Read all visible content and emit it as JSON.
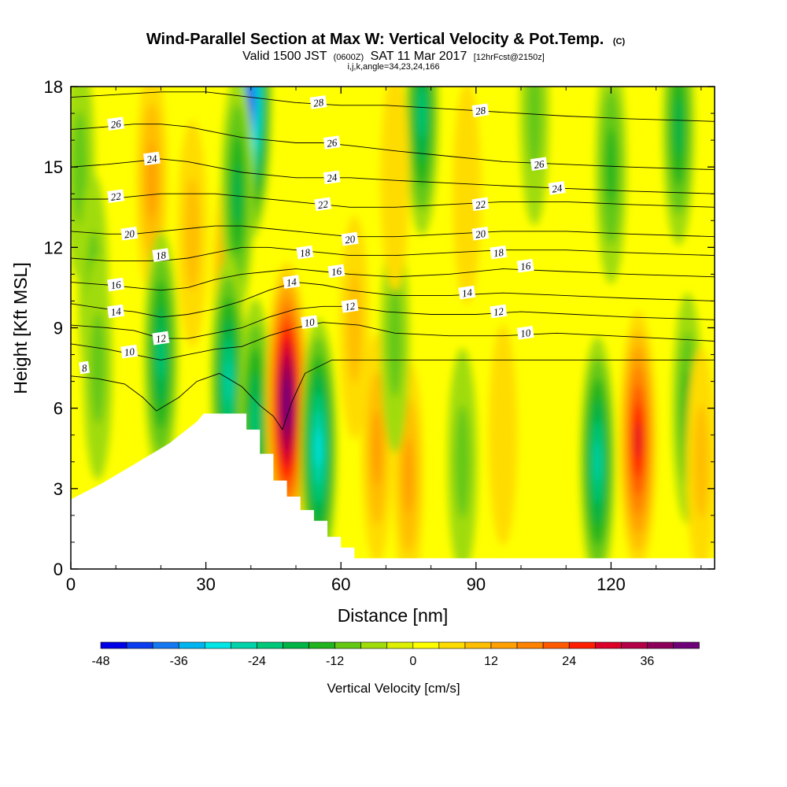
{
  "header": {
    "title_main": "Wind-Parallel Section at Max W: Vertical Velocity & Pot.Temp.",
    "title_tag": "(C)",
    "valid_a": "Valid 1500 JST",
    "valid_b": "(0600Z)",
    "valid_c": "SAT 11 Mar 2017",
    "valid_d": "[12hrFcst@2150z]",
    "info": "i,j,k,angle=34,23,24,166"
  },
  "chart_data": {
    "type": "heatmap",
    "xlabel": "Distance [nm]",
    "ylabel": "Height [Kft MSL]",
    "xlim": [
      0,
      143
    ],
    "ylim": [
      0,
      18
    ],
    "x_ticks": [
      "0",
      "30",
      "60",
      "90",
      "120"
    ],
    "x_tick_values": [
      0,
      30,
      60,
      90,
      120
    ],
    "y_ticks": [
      "0",
      "3",
      "6",
      "9",
      "12",
      "15",
      "18"
    ],
    "y_tick_values": [
      0,
      3,
      6,
      9,
      12,
      15,
      18
    ],
    "field": "Vertical Velocity",
    "colorbar": {
      "label": "Vertical Velocity [cm/s]",
      "min": -48,
      "max": 42,
      "step": 4,
      "tick_labels": [
        "-48",
        "-36",
        "-24",
        "-12",
        "0",
        "12",
        "24",
        "36"
      ],
      "tick_values": [
        -48,
        -36,
        -24,
        -12,
        0,
        12,
        24,
        36
      ],
      "colors": [
        "#0000e6",
        "#0a3cf0",
        "#1478f0",
        "#00b4f0",
        "#00e6e6",
        "#00d2aa",
        "#00c878",
        "#00b446",
        "#22b41e",
        "#64c814",
        "#a0dc0a",
        "#dcf000",
        "#ffff00",
        "#ffdc00",
        "#ffbe00",
        "#ffa000",
        "#ff8200",
        "#ff5a00",
        "#ff1e00",
        "#dc0028",
        "#b40046",
        "#8c005a",
        "#6e0078"
      ]
    },
    "velocity_features": [
      {
        "x": 2,
        "y": 15.0,
        "value": -8
      },
      {
        "x": 5,
        "y": 10.5,
        "value": -8
      },
      {
        "x": 6,
        "y": 7.5,
        "value": -6
      },
      {
        "x": 18,
        "y": 14.5,
        "value": 12
      },
      {
        "x": 20,
        "y": 8.0,
        "value": -20
      },
      {
        "x": 27,
        "y": 12.5,
        "value": 8
      },
      {
        "x": 35,
        "y": 10.5,
        "value": 14
      },
      {
        "x": 40,
        "y": 17.5,
        "value": -40
      },
      {
        "x": 37,
        "y": 14.0,
        "value": -16
      },
      {
        "x": 35,
        "y": 7.0,
        "value": -24
      },
      {
        "x": 41,
        "y": 5.5,
        "value": -20
      },
      {
        "x": 48,
        "y": 6.2,
        "value": 42
      },
      {
        "x": 55,
        "y": 4.5,
        "value": -28
      },
      {
        "x": 68,
        "y": 4.5,
        "value": 10
      },
      {
        "x": 63,
        "y": 9.0,
        "value": 6
      },
      {
        "x": 75,
        "y": 3.5,
        "value": 10
      },
      {
        "x": 78,
        "y": 17.0,
        "value": -18
      },
      {
        "x": 72,
        "y": 8.5,
        "value": -6
      },
      {
        "x": 72,
        "y": 14.5,
        "value": 4
      },
      {
        "x": 87,
        "y": 4.0,
        "value": -8
      },
      {
        "x": 88,
        "y": 14.0,
        "value": 4
      },
      {
        "x": 103,
        "y": 17.0,
        "value": -6
      },
      {
        "x": 96,
        "y": 5.0,
        "value": 4
      },
      {
        "x": 117,
        "y": 4.0,
        "value": -22
      },
      {
        "x": 126,
        "y": 4.8,
        "value": 28
      },
      {
        "x": 120,
        "y": 15.0,
        "value": -12
      },
      {
        "x": 135,
        "y": 16.5,
        "value": -14
      },
      {
        "x": 137,
        "y": 6.0,
        "value": -10
      },
      {
        "x": 140,
        "y": 4.0,
        "value": 8
      }
    ],
    "terrain": [
      {
        "x": 0,
        "y": 2.6
      },
      {
        "x": 3.5,
        "y": 2.9
      },
      {
        "x": 7,
        "y": 3.2
      },
      {
        "x": 10,
        "y": 3.5
      },
      {
        "x": 13,
        "y": 3.8
      },
      {
        "x": 16,
        "y": 4.1
      },
      {
        "x": 19,
        "y": 4.4
      },
      {
        "x": 22,
        "y": 4.7
      },
      {
        "x": 25,
        "y": 5.1
      },
      {
        "x": 28,
        "y": 5.5
      },
      {
        "x": 29.5,
        "y": 5.8
      },
      {
        "x": 39,
        "y": 5.8
      },
      {
        "x": 39,
        "y": 5.2
      },
      {
        "x": 42,
        "y": 5.2
      },
      {
        "x": 42,
        "y": 4.3
      },
      {
        "x": 45,
        "y": 4.3
      },
      {
        "x": 45,
        "y": 3.3
      },
      {
        "x": 48,
        "y": 3.3
      },
      {
        "x": 48,
        "y": 2.7
      },
      {
        "x": 51,
        "y": 2.7
      },
      {
        "x": 51,
        "y": 2.2
      },
      {
        "x": 54,
        "y": 2.2
      },
      {
        "x": 54,
        "y": 1.8
      },
      {
        "x": 57,
        "y": 1.8
      },
      {
        "x": 57,
        "y": 1.2
      },
      {
        "x": 60,
        "y": 1.2
      },
      {
        "x": 60,
        "y": 0.8
      },
      {
        "x": 63,
        "y": 0.8
      },
      {
        "x": 63,
        "y": 0.4
      },
      {
        "x": 143,
        "y": 0.4
      }
    ],
    "isentropes": [
      {
        "label": "8",
        "labels": [
          {
            "x": 3,
            "y": 7.5
          }
        ],
        "points": [
          [
            0,
            7.2
          ],
          [
            6,
            7.1
          ],
          [
            12,
            6.9
          ],
          [
            16,
            6.4
          ],
          [
            19,
            5.9
          ],
          [
            24,
            6.4
          ],
          [
            28,
            7.0
          ],
          [
            33,
            7.3
          ],
          [
            38,
            6.8
          ],
          [
            42,
            6.1
          ],
          [
            45,
            5.7
          ],
          [
            47,
            5.2
          ],
          [
            49,
            6.2
          ],
          [
            52,
            7.3
          ],
          [
            58,
            7.8
          ],
          [
            70,
            7.8
          ],
          [
            90,
            7.8
          ],
          [
            105,
            7.8
          ],
          [
            115,
            7.8
          ],
          [
            143,
            7.8
          ]
        ]
      },
      {
        "label": "10",
        "labels": [
          {
            "x": 13,
            "y": 8.1
          },
          {
            "x": 53,
            "y": 9.2
          },
          {
            "x": 101,
            "y": 8.8
          }
        ],
        "points": [
          [
            0,
            8.4
          ],
          [
            8,
            8.2
          ],
          [
            14,
            8.0
          ],
          [
            20,
            7.8
          ],
          [
            26,
            8.0
          ],
          [
            32,
            8.2
          ],
          [
            38,
            8.3
          ],
          [
            44,
            8.7
          ],
          [
            50,
            9.0
          ],
          [
            56,
            9.2
          ],
          [
            64,
            9.1
          ],
          [
            72,
            8.8
          ],
          [
            84,
            8.7
          ],
          [
            96,
            8.7
          ],
          [
            108,
            8.8
          ],
          [
            120,
            8.7
          ],
          [
            132,
            8.6
          ],
          [
            143,
            8.5
          ]
        ]
      },
      {
        "label": "12",
        "labels": [
          {
            "x": 20,
            "y": 8.6
          },
          {
            "x": 62,
            "y": 9.8
          },
          {
            "x": 95,
            "y": 9.6
          }
        ],
        "points": [
          [
            0,
            9.1
          ],
          [
            8,
            9.0
          ],
          [
            14,
            8.9
          ],
          [
            20,
            8.6
          ],
          [
            26,
            8.6
          ],
          [
            32,
            8.8
          ],
          [
            38,
            9.0
          ],
          [
            44,
            9.4
          ],
          [
            50,
            9.7
          ],
          [
            56,
            9.8
          ],
          [
            62,
            9.8
          ],
          [
            70,
            9.6
          ],
          [
            80,
            9.5
          ],
          [
            90,
            9.5
          ],
          [
            100,
            9.6
          ],
          [
            112,
            9.5
          ],
          [
            124,
            9.4
          ],
          [
            143,
            9.3
          ]
        ]
      },
      {
        "label": "14",
        "labels": [
          {
            "x": 10,
            "y": 9.6
          },
          {
            "x": 49,
            "y": 10.7
          },
          {
            "x": 88,
            "y": 10.3
          }
        ],
        "points": [
          [
            0,
            9.9
          ],
          [
            8,
            9.7
          ],
          [
            14,
            9.6
          ],
          [
            20,
            9.4
          ],
          [
            26,
            9.5
          ],
          [
            32,
            9.7
          ],
          [
            38,
            10.0
          ],
          [
            44,
            10.4
          ],
          [
            50,
            10.7
          ],
          [
            56,
            10.6
          ],
          [
            62,
            10.4
          ],
          [
            72,
            10.2
          ],
          [
            84,
            10.2
          ],
          [
            96,
            10.3
          ],
          [
            110,
            10.2
          ],
          [
            124,
            10.1
          ],
          [
            143,
            10.0
          ]
        ]
      },
      {
        "label": "16",
        "labels": [
          {
            "x": 10,
            "y": 10.6
          },
          {
            "x": 59,
            "y": 11.1
          },
          {
            "x": 101,
            "y": 11.3
          }
        ],
        "points": [
          [
            0,
            10.7
          ],
          [
            8,
            10.6
          ],
          [
            14,
            10.5
          ],
          [
            20,
            10.4
          ],
          [
            26,
            10.5
          ],
          [
            32,
            10.8
          ],
          [
            38,
            11.0
          ],
          [
            44,
            11.1
          ],
          [
            50,
            11.2
          ],
          [
            56,
            11.1
          ],
          [
            62,
            11.0
          ],
          [
            72,
            10.9
          ],
          [
            84,
            11.0
          ],
          [
            96,
            11.2
          ],
          [
            110,
            11.1
          ],
          [
            124,
            11.0
          ],
          [
            143,
            10.9
          ]
        ]
      },
      {
        "label": "18",
        "labels": [
          {
            "x": 20,
            "y": 11.7
          },
          {
            "x": 52,
            "y": 11.8
          },
          {
            "x": 95,
            "y": 11.8
          }
        ],
        "points": [
          [
            0,
            11.6
          ],
          [
            8,
            11.5
          ],
          [
            14,
            11.5
          ],
          [
            20,
            11.5
          ],
          [
            26,
            11.6
          ],
          [
            32,
            11.8
          ],
          [
            38,
            12.0
          ],
          [
            44,
            12.0
          ],
          [
            50,
            11.9
          ],
          [
            56,
            11.8
          ],
          [
            62,
            11.7
          ],
          [
            72,
            11.7
          ],
          [
            84,
            11.8
          ],
          [
            96,
            11.9
          ],
          [
            110,
            11.9
          ],
          [
            124,
            11.8
          ],
          [
            143,
            11.7
          ]
        ]
      },
      {
        "label": "20",
        "labels": [
          {
            "x": 13,
            "y": 12.5
          },
          {
            "x": 62,
            "y": 12.3
          },
          {
            "x": 91,
            "y": 12.5
          }
        ],
        "points": [
          [
            0,
            12.6
          ],
          [
            8,
            12.5
          ],
          [
            14,
            12.5
          ],
          [
            20,
            12.6
          ],
          [
            26,
            12.7
          ],
          [
            32,
            12.8
          ],
          [
            38,
            12.8
          ],
          [
            44,
            12.7
          ],
          [
            50,
            12.6
          ],
          [
            56,
            12.5
          ],
          [
            62,
            12.4
          ],
          [
            72,
            12.4
          ],
          [
            84,
            12.5
          ],
          [
            96,
            12.6
          ],
          [
            110,
            12.6
          ],
          [
            124,
            12.5
          ],
          [
            143,
            12.4
          ]
        ]
      },
      {
        "label": "22",
        "labels": [
          {
            "x": 10,
            "y": 13.9
          },
          {
            "x": 56,
            "y": 13.6
          },
          {
            "x": 91,
            "y": 13.6
          }
        ],
        "points": [
          [
            0,
            13.8
          ],
          [
            8,
            13.8
          ],
          [
            14,
            13.9
          ],
          [
            20,
            14.0
          ],
          [
            26,
            14.0
          ],
          [
            32,
            14.0
          ],
          [
            38,
            13.9
          ],
          [
            44,
            13.8
          ],
          [
            50,
            13.7
          ],
          [
            56,
            13.6
          ],
          [
            62,
            13.5
          ],
          [
            72,
            13.5
          ],
          [
            84,
            13.6
          ],
          [
            96,
            13.7
          ],
          [
            110,
            13.7
          ],
          [
            124,
            13.6
          ],
          [
            143,
            13.5
          ]
        ]
      },
      {
        "label": "24",
        "labels": [
          {
            "x": 18,
            "y": 15.3
          },
          {
            "x": 58,
            "y": 14.6
          },
          {
            "x": 108,
            "y": 14.2
          }
        ],
        "points": [
          [
            0,
            15.0
          ],
          [
            8,
            15.1
          ],
          [
            14,
            15.2
          ],
          [
            20,
            15.3
          ],
          [
            26,
            15.2
          ],
          [
            32,
            15.0
          ],
          [
            38,
            14.8
          ],
          [
            44,
            14.7
          ],
          [
            50,
            14.6
          ],
          [
            56,
            14.6
          ],
          [
            62,
            14.6
          ],
          [
            72,
            14.5
          ],
          [
            84,
            14.4
          ],
          [
            96,
            14.3
          ],
          [
            110,
            14.2
          ],
          [
            124,
            14.1
          ],
          [
            143,
            14.0
          ]
        ]
      },
      {
        "label": "26",
        "labels": [
          {
            "x": 10,
            "y": 16.6
          },
          {
            "x": 58,
            "y": 15.9
          },
          {
            "x": 104,
            "y": 15.1
          }
        ],
        "points": [
          [
            0,
            16.4
          ],
          [
            8,
            16.5
          ],
          [
            14,
            16.6
          ],
          [
            20,
            16.6
          ],
          [
            26,
            16.5
          ],
          [
            32,
            16.3
          ],
          [
            38,
            16.1
          ],
          [
            44,
            16.0
          ],
          [
            50,
            15.9
          ],
          [
            56,
            15.9
          ],
          [
            62,
            15.8
          ],
          [
            72,
            15.6
          ],
          [
            84,
            15.4
          ],
          [
            96,
            15.2
          ],
          [
            110,
            15.1
          ],
          [
            124,
            15.0
          ],
          [
            143,
            14.9
          ]
        ]
      },
      {
        "label": "28",
        "labels": [
          {
            "x": 55,
            "y": 17.4
          },
          {
            "x": 91,
            "y": 17.1
          }
        ],
        "points": [
          [
            0,
            17.6
          ],
          [
            10,
            17.7
          ],
          [
            20,
            17.8
          ],
          [
            30,
            17.8
          ],
          [
            40,
            17.6
          ],
          [
            50,
            17.4
          ],
          [
            60,
            17.3
          ],
          [
            70,
            17.3
          ],
          [
            80,
            17.2
          ],
          [
            90,
            17.1
          ],
          [
            100,
            17.0
          ],
          [
            110,
            16.9
          ],
          [
            124,
            16.8
          ],
          [
            143,
            16.7
          ]
        ]
      }
    ]
  }
}
